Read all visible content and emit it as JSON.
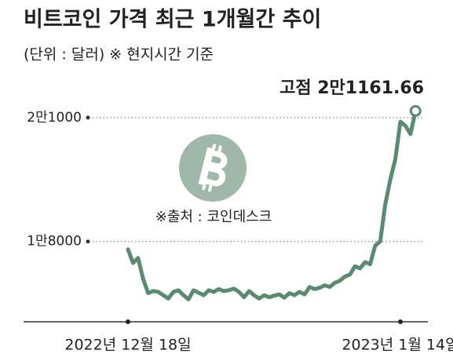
{
  "chart_data": {
    "type": "line",
    "title": "비트코인 가격 최근 1개월간 추이",
    "subtitle": "(단위 : 달러)  ※ 현지시간 기준",
    "annotation": "고점 2만1161.66",
    "source": "※출처 : 코인데스크",
    "categories": [
      "2022년 12월 18일",
      null,
      null,
      null,
      null,
      null,
      null,
      null,
      null,
      null,
      null,
      null,
      null,
      null,
      null,
      null,
      null,
      null,
      null,
      null,
      null,
      null,
      null,
      null,
      null,
      null,
      null,
      null,
      null,
      null,
      null,
      null,
      null,
      null,
      null,
      null,
      null,
      null,
      null,
      null,
      null,
      null,
      null,
      null,
      null,
      null,
      null,
      null,
      null,
      null,
      null,
      null,
      null,
      null,
      "2023년 1월 14일",
      null,
      null,
      null
    ],
    "values": [
      17810,
      17480,
      17600,
      17100,
      16750,
      16800,
      16780,
      16700,
      16620,
      16780,
      16820,
      16700,
      16600,
      16820,
      16760,
      16700,
      16820,
      16780,
      16850,
      16800,
      16820,
      16860,
      16780,
      16650,
      16800,
      16700,
      16620,
      16700,
      16650,
      16690,
      16720,
      16640,
      16750,
      16700,
      16780,
      16720,
      16900,
      16850,
      16880,
      16940,
      16900,
      17000,
      17050,
      17150,
      17200,
      17400,
      17350,
      17500,
      17450,
      17900,
      18000,
      18900,
      19500,
      20000,
      20900,
      20800,
      20600,
      21161.66
    ],
    "color": "#5a8a70",
    "ylim": [
      16000,
      21700
    ],
    "yticks": [
      {
        "value": 18000,
        "label": "1만8000"
      },
      {
        "value": 21000,
        "label": "2만1000"
      }
    ],
    "grid": true
  }
}
